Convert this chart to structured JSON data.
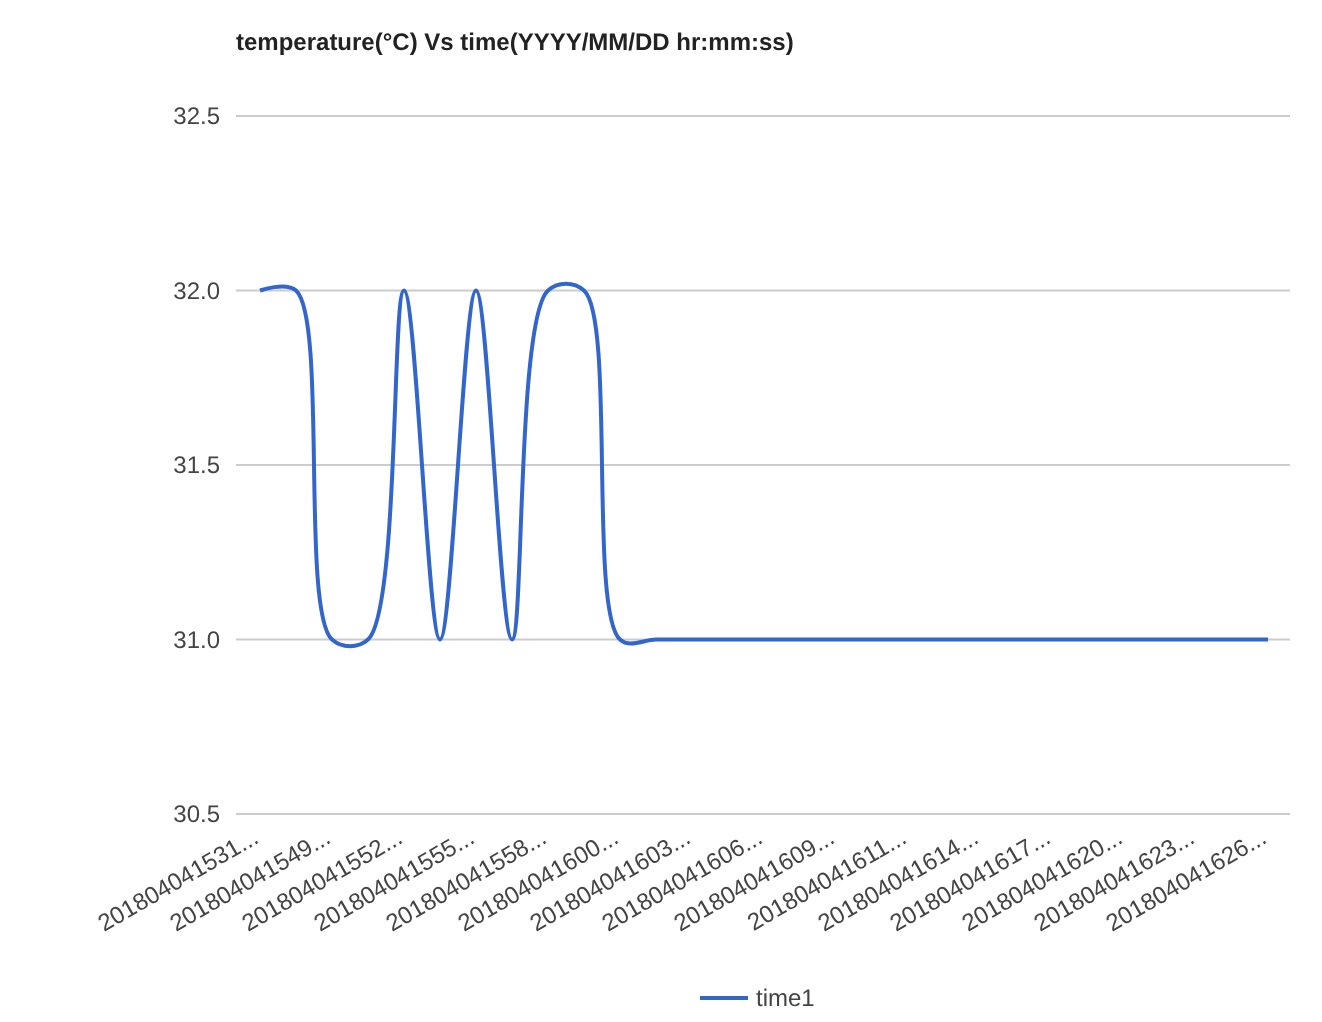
{
  "chart_data": {
    "type": "line",
    "title": "temperature(°C) Vs time(YYYY/MM/DD hr:mm:ss)",
    "categories": [
      "201804041531...",
      null,
      "201804041549...",
      null,
      "201804041552...",
      null,
      "201804041555...",
      null,
      "201804041558...",
      null,
      "201804041600...",
      null,
      "201804041603...",
      null,
      "201804041606...",
      null,
      "201804041609...",
      null,
      "201804041611...",
      null,
      "201804041614...",
      null,
      "201804041617...",
      null,
      "201804041620...",
      null,
      "201804041623...",
      null,
      "201804041626..."
    ],
    "series": [
      {
        "name": "time1",
        "color": "#3366cc",
        "values": [
          32,
          32,
          31,
          31,
          32,
          31,
          32,
          31,
          32,
          32,
          31,
          31,
          31,
          31,
          31,
          31,
          31,
          31,
          31,
          31,
          31,
          31,
          31,
          31,
          31,
          31,
          31,
          31,
          31
        ]
      }
    ],
    "ylim": [
      30.5,
      32.5
    ],
    "yticks": [
      30.5,
      {
        "value": 31,
        "label": "31.0"
      },
      31.5,
      {
        "value": 32,
        "label": "32.0"
      },
      32.5
    ],
    "grid": "y",
    "legend": "bottom",
    "marker": "none",
    "line_style": "solid"
  }
}
